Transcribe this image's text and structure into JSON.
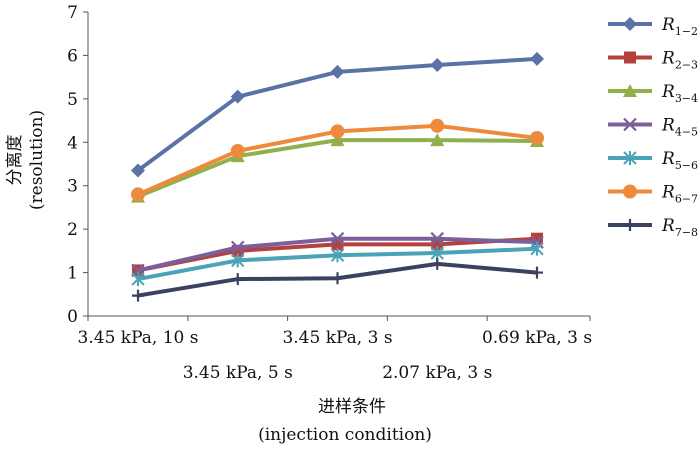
{
  "chart_data": {
    "type": "line",
    "categories": [
      "3.45 kPa, 10 s",
      "3.45 kPa, 5 s",
      "3.45 kPa, 3 s",
      "2.07 kPa, 3 s",
      "0.69 kPa, 3 s"
    ],
    "ylabel": {
      "line1": "分离度",
      "line2": "(resolution)"
    },
    "xlabel": {
      "line1": "进样条件",
      "line2": "(injection condition)"
    },
    "ylim": [
      0,
      7
    ],
    "yticks": [
      0,
      1,
      2,
      3,
      4,
      5,
      6,
      7
    ],
    "legend_position": "right",
    "series": [
      {
        "name": "R",
        "sub": "1−2",
        "color": "#5B72A6",
        "marker": "diamond",
        "values": [
          3.35,
          5.05,
          5.62,
          5.78,
          5.92
        ]
      },
      {
        "name": "R",
        "sub": "2−3",
        "color": "#B5413F",
        "marker": "square",
        "values": [
          1.05,
          1.5,
          1.65,
          1.65,
          1.78
        ]
      },
      {
        "name": "R",
        "sub": "3−4",
        "color": "#91AF4C",
        "marker": "triangle",
        "values": [
          2.75,
          3.68,
          4.05,
          4.05,
          4.03
        ]
      },
      {
        "name": "R",
        "sub": "4−5",
        "color": "#7B5F9A",
        "marker": "x",
        "values": [
          1.05,
          1.58,
          1.78,
          1.78,
          1.7
        ]
      },
      {
        "name": "R",
        "sub": "5−6",
        "color": "#4AA3B6",
        "marker": "asterisk",
        "values": [
          0.85,
          1.28,
          1.4,
          1.45,
          1.55
        ]
      },
      {
        "name": "R",
        "sub": "6−7",
        "color": "#EE8A3C",
        "marker": "circle",
        "values": [
          2.8,
          3.8,
          4.25,
          4.38,
          4.1
        ]
      },
      {
        "name": "R",
        "sub": "7−8",
        "color": "#3A4260",
        "marker": "plus",
        "values": [
          0.47,
          0.85,
          0.87,
          1.2,
          1.0
        ]
      }
    ]
  }
}
